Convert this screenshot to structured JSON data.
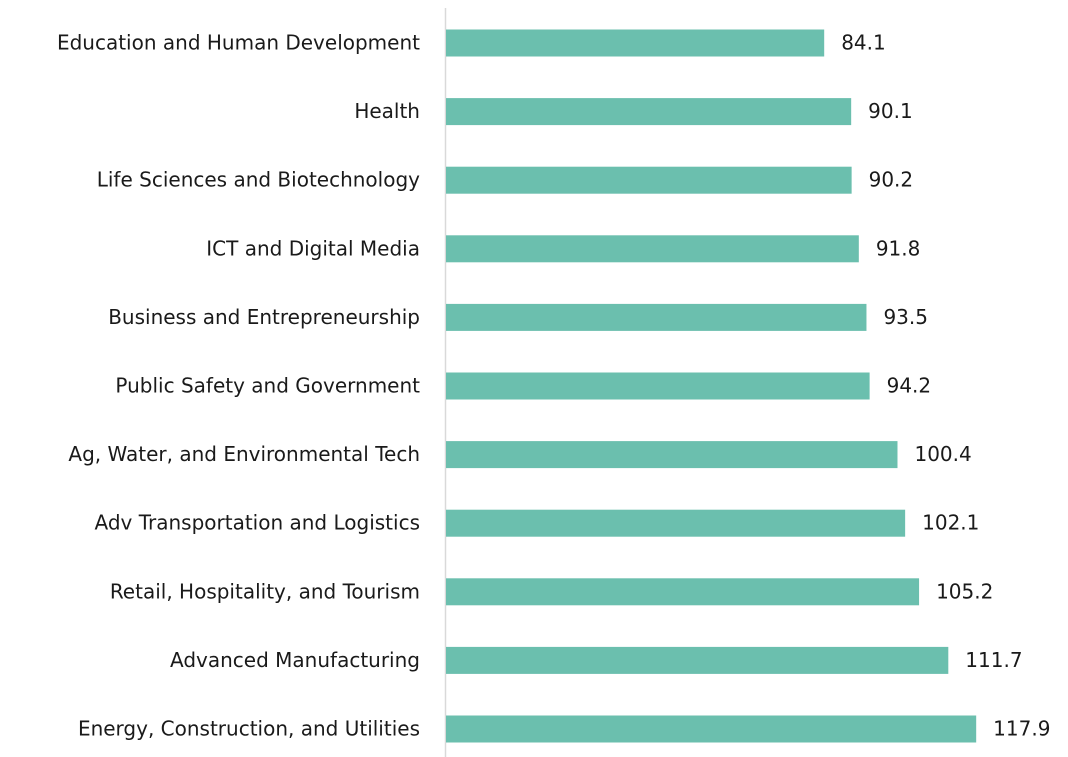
{
  "chart_data": {
    "type": "barh",
    "categories": [
      "Education and Human Development",
      "Health",
      "Life Sciences and Biotechnology",
      "ICT and Digital Media",
      "Business and Entrepreneurship",
      "Public Safety and Government",
      "Ag, Water, and Environmental Tech",
      "Adv Transportation and Logistics",
      "Retail, Hospitality, and Tourism",
      "Advanced Manufacturing",
      "Energy, Construction, and Utilities"
    ],
    "values": [
      84.1,
      90.1,
      90.2,
      91.8,
      93.5,
      94.2,
      100.4,
      102.1,
      105.2,
      111.7,
      117.9
    ],
    "color": "#6bbfae",
    "xlim": [
      0,
      130
    ]
  }
}
